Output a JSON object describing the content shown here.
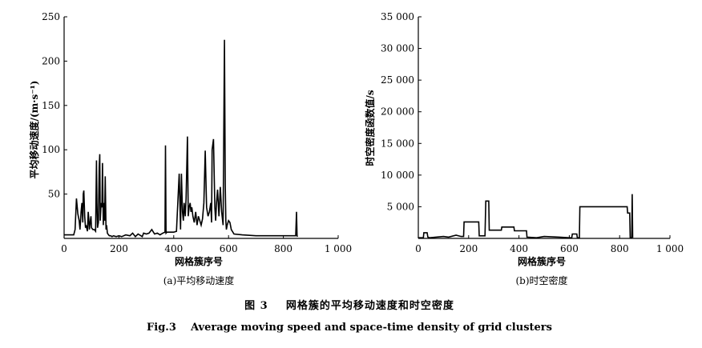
{
  "chart_data": [
    {
      "type": "line",
      "subtitle": "(a)平均移动速度",
      "xlabel": "网格簇序号",
      "ylabel": "平均移动速度/(m·s⁻¹)",
      "xlim": [
        0,
        1000
      ],
      "ylim": [
        0,
        250
      ],
      "xticks": [
        0,
        200,
        400,
        600,
        800,
        1000
      ],
      "xtick_labels": [
        "0",
        "200",
        "400",
        "600",
        "800",
        "1 000"
      ],
      "yticks": [
        0,
        50,
        100,
        150,
        200,
        250
      ],
      "ytick_labels": [
        "",
        "50",
        "100",
        "150",
        "200",
        "250"
      ],
      "grid": false,
      "series": [
        {
          "x": [
            0,
            35,
            40,
            45,
            50,
            55,
            58,
            62,
            65,
            68,
            70,
            72,
            75,
            78,
            80,
            85,
            88,
            90,
            92,
            95,
            98,
            100,
            105,
            110,
            115,
            118,
            120,
            122,
            125,
            128,
            130,
            132,
            135,
            138,
            140,
            143,
            146,
            148,
            150,
            153,
            155,
            158,
            160,
            165,
            170,
            175,
            180,
            190,
            200,
            210,
            225,
            240,
            250,
            260,
            270,
            280,
            285,
            290,
            300,
            310,
            315,
            320,
            330,
            340,
            350,
            360,
            368,
            370,
            372,
            375,
            380,
            400,
            410,
            420,
            425,
            428,
            432,
            435,
            438,
            442,
            445,
            450,
            453,
            456,
            460,
            463,
            466,
            470,
            475,
            480,
            485,
            490,
            495,
            500,
            505,
            510,
            515,
            520,
            525,
            530,
            535,
            538,
            540,
            545,
            550,
            553,
            556,
            560,
            565,
            570,
            575,
            580,
            585,
            588,
            590,
            592,
            595,
            600,
            605,
            610,
            620,
            650,
            700,
            750,
            800,
            830,
            840,
            845,
            848,
            850,
            852
          ],
          "y": [
            4,
            4,
            10,
            45,
            28,
            20,
            10,
            30,
            40,
            18,
            50,
            54,
            25,
            12,
            15,
            8,
            30,
            22,
            10,
            18,
            25,
            12,
            10,
            10,
            8,
            88,
            40,
            12,
            18,
            80,
            95,
            20,
            40,
            35,
            85,
            15,
            40,
            20,
            70,
            10,
            15,
            6,
            5,
            3,
            3,
            2,
            3,
            2,
            3,
            2,
            4,
            3,
            6,
            2,
            5,
            3,
            2,
            6,
            5,
            6,
            8,
            10,
            5,
            6,
            4,
            6,
            7,
            105,
            6,
            7,
            7,
            7,
            8,
            73,
            10,
            73,
            30,
            20,
            40,
            25,
            45,
            115,
            25,
            35,
            40,
            30,
            35,
            25,
            18,
            30,
            15,
            25,
            20,
            15,
            22,
            40,
            99,
            35,
            25,
            30,
            40,
            18,
            100,
            112,
            35,
            20,
            40,
            55,
            25,
            58,
            30,
            15,
            224,
            60,
            20,
            10,
            15,
            20,
            18,
            10,
            5,
            4,
            3,
            3,
            3,
            3,
            3,
            3,
            30,
            3,
            2
          ]
        }
      ]
    },
    {
      "type": "line",
      "subtitle": "(b)时空密度",
      "xlabel": "网格簇序号",
      "ylabel": "时空密度函数值/s",
      "xlim": [
        0,
        1000
      ],
      "ylim": [
        0,
        35000
      ],
      "xticks": [
        0,
        200,
        400,
        600,
        800,
        1000
      ],
      "xtick_labels": [
        "0",
        "200",
        "400",
        "600",
        "800",
        "1 000"
      ],
      "yticks": [
        0,
        5000,
        10000,
        15000,
        20000,
        25000,
        30000,
        35000
      ],
      "ytick_labels": [
        "",
        "5 000",
        "10 000",
        "15 000",
        "20 000",
        "25 000",
        "30 000",
        "35 000"
      ],
      "grid": false,
      "series": [
        {
          "x": [
            0,
            20,
            22,
            35,
            38,
            45,
            100,
            120,
            150,
            170,
            180,
            182,
            240,
            242,
            265,
            268,
            280,
            282,
            330,
            332,
            380,
            382,
            430,
            432,
            470,
            500,
            560,
            600,
            610,
            612,
            630,
            632,
            640,
            642,
            830,
            832,
            840,
            842,
            848,
            850,
            852
          ],
          "y": [
            100,
            100,
            900,
            900,
            200,
            100,
            300,
            200,
            500,
            300,
            300,
            2600,
            2600,
            400,
            400,
            5900,
            5900,
            1300,
            1300,
            1800,
            1800,
            1200,
            1200,
            200,
            100,
            300,
            200,
            100,
            100,
            700,
            700,
            100,
            100,
            5000,
            5000,
            4000,
            4000,
            100,
            100,
            7000,
            100
          ]
        }
      ]
    }
  ],
  "caption": {
    "cn": "图 3    网格簇的平均移动速度和时空密度",
    "en": "Fig.3    Average moving speed and space-time density of grid clusters"
  },
  "colors": {
    "line": "#000000",
    "axis": "#000000",
    "background": "#ffffff"
  }
}
